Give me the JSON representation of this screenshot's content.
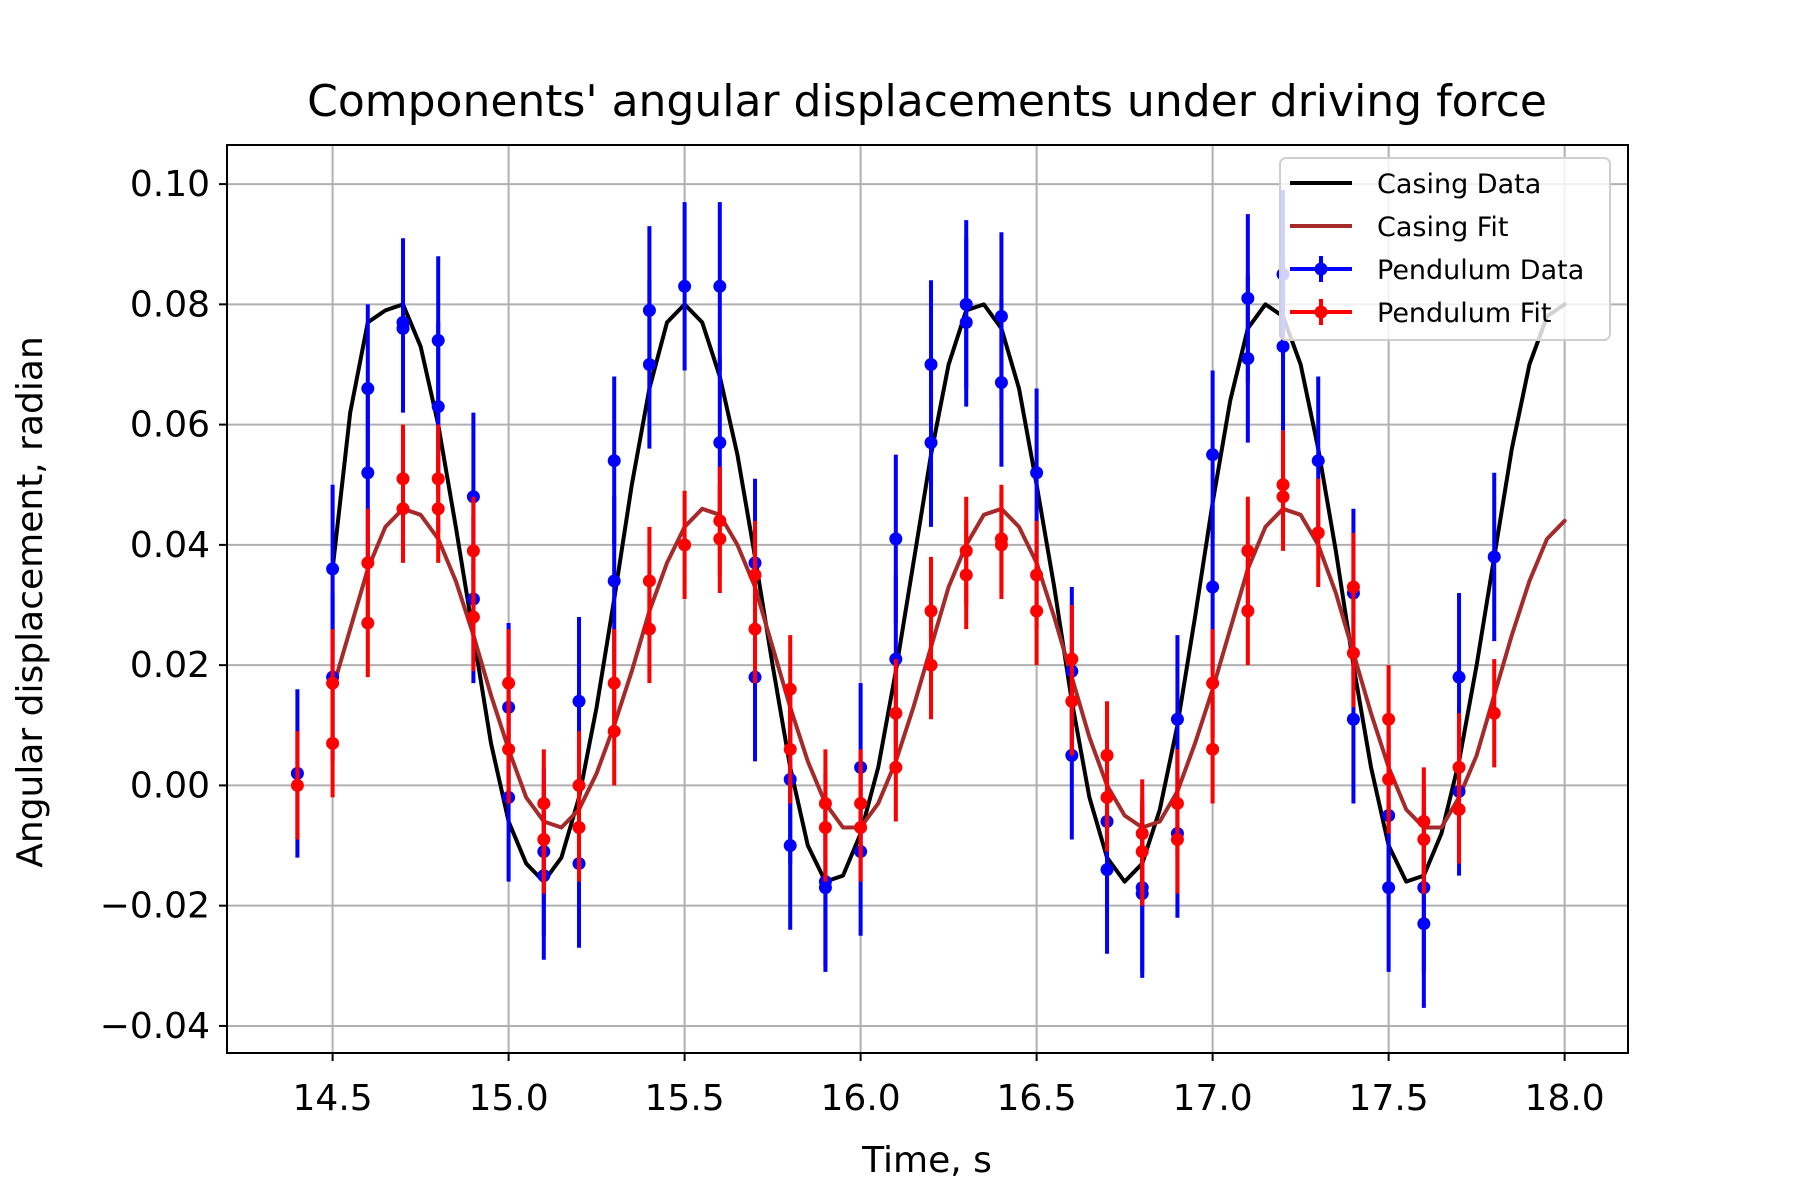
{
  "chart_data": {
    "type": "line",
    "title": "Components' angular displacements under driving force",
    "xlabel": "Time, s",
    "ylabel": "Angular displacement, radian",
    "xlim": [
      14.2,
      18.18
    ],
    "ylim": [
      -0.0445,
      0.1065
    ],
    "xticks": [
      14.5,
      15.0,
      15.5,
      16.0,
      16.5,
      17.0,
      17.5,
      18.0
    ],
    "xtick_labels": [
      "14.5",
      "15.0",
      "15.5",
      "16.0",
      "16.5",
      "17.0",
      "17.5",
      "18.0"
    ],
    "yticks": [
      -0.04,
      -0.02,
      0.0,
      0.02,
      0.04,
      0.06,
      0.08,
      0.1
    ],
    "ytick_labels": [
      "−0.04",
      "−0.02",
      "0.00",
      "0.02",
      "0.04",
      "0.06",
      "0.08",
      "0.10"
    ],
    "grid": true,
    "legend_position": "top-right",
    "series": [
      {
        "name": "Casing Data",
        "kind": "line",
        "color": "#000000",
        "x": [
          14.5,
          14.55,
          14.6,
          14.65,
          14.7,
          14.75,
          14.8,
          14.85,
          14.9,
          14.95,
          15.0,
          15.05,
          15.1,
          15.15,
          15.2,
          15.25,
          15.3,
          15.35,
          15.4,
          15.45,
          15.5,
          15.55,
          15.6,
          15.65,
          15.7,
          15.75,
          15.8,
          15.85,
          15.9,
          15.95,
          16.0,
          16.05,
          16.1,
          16.15,
          16.2,
          16.25,
          16.3,
          16.35,
          16.4,
          16.45,
          16.5,
          16.55,
          16.6,
          16.65,
          16.7,
          16.75,
          16.8,
          16.85,
          16.9,
          16.95,
          17.0,
          17.05,
          17.1,
          17.15,
          17.2,
          17.25,
          17.3,
          17.35,
          17.4,
          17.45,
          17.5,
          17.55,
          17.6,
          17.65,
          17.7,
          17.75,
          17.8,
          17.85,
          17.9,
          17.95,
          18.0
        ],
        "y": [
          0.036,
          0.062,
          0.077,
          0.079,
          0.08,
          0.073,
          0.06,
          0.043,
          0.025,
          0.007,
          -0.006,
          -0.013,
          -0.016,
          -0.012,
          -0.002,
          0.013,
          0.031,
          0.05,
          0.066,
          0.077,
          0.08,
          0.077,
          0.068,
          0.055,
          0.038,
          0.02,
          0.003,
          -0.01,
          -0.016,
          -0.015,
          -0.008,
          0.003,
          0.019,
          0.037,
          0.055,
          0.07,
          0.079,
          0.08,
          0.076,
          0.066,
          0.05,
          0.033,
          0.014,
          -0.002,
          -0.012,
          -0.016,
          -0.013,
          -0.004,
          0.01,
          0.028,
          0.047,
          0.064,
          0.076,
          0.08,
          0.078,
          0.07,
          0.056,
          0.039,
          0.02,
          0.003,
          -0.01,
          -0.016,
          -0.015,
          -0.008,
          0.004,
          0.02,
          0.038,
          0.056,
          0.07,
          0.078,
          0.08
        ]
      },
      {
        "name": "Casing Fit",
        "kind": "line",
        "color": "#a52a2a",
        "x": [
          14.5,
          14.55,
          14.6,
          14.65,
          14.7,
          14.75,
          14.8,
          14.85,
          14.9,
          14.95,
          15.0,
          15.05,
          15.1,
          15.15,
          15.2,
          15.25,
          15.3,
          15.35,
          15.4,
          15.45,
          15.5,
          15.55,
          15.6,
          15.65,
          15.7,
          15.75,
          15.8,
          15.85,
          15.9,
          15.95,
          16.0,
          16.05,
          16.1,
          16.15,
          16.2,
          16.25,
          16.3,
          16.35,
          16.4,
          16.45,
          16.5,
          16.55,
          16.6,
          16.65,
          16.7,
          16.75,
          16.8,
          16.85,
          16.9,
          16.95,
          17.0,
          17.05,
          17.1,
          17.15,
          17.2,
          17.25,
          17.3,
          17.35,
          17.4,
          17.45,
          17.5,
          17.55,
          17.6,
          17.65,
          17.7,
          17.75,
          17.8,
          17.85,
          17.9,
          17.95,
          18.0
        ],
        "y": [
          0.016,
          0.026,
          0.036,
          0.043,
          0.046,
          0.045,
          0.041,
          0.034,
          0.025,
          0.015,
          0.006,
          -0.002,
          -0.006,
          -0.007,
          -0.004,
          0.002,
          0.01,
          0.019,
          0.029,
          0.037,
          0.043,
          0.046,
          0.045,
          0.04,
          0.033,
          0.023,
          0.013,
          0.004,
          -0.003,
          -0.007,
          -0.007,
          -0.003,
          0.004,
          0.013,
          0.023,
          0.033,
          0.04,
          0.045,
          0.046,
          0.043,
          0.037,
          0.028,
          0.018,
          0.008,
          0.0,
          -0.005,
          -0.007,
          -0.006,
          -0.001,
          0.007,
          0.016,
          0.026,
          0.036,
          0.043,
          0.046,
          0.045,
          0.04,
          0.032,
          0.022,
          0.012,
          0.003,
          -0.004,
          -0.007,
          -0.007,
          -0.002,
          0.005,
          0.015,
          0.025,
          0.034,
          0.041,
          0.044
        ]
      },
      {
        "name": "Pendulum Data",
        "kind": "errorbar",
        "color": "#0000ff",
        "x": [
          14.4,
          14.5,
          14.5,
          14.6,
          14.6,
          14.7,
          14.7,
          14.8,
          14.8,
          14.9,
          14.9,
          15.0,
          15.0,
          15.1,
          15.1,
          15.2,
          15.2,
          15.3,
          15.3,
          15.4,
          15.4,
          15.5,
          15.6,
          15.6,
          15.7,
          15.7,
          15.8,
          15.8,
          15.9,
          15.9,
          16.0,
          16.0,
          16.1,
          16.1,
          16.2,
          16.2,
          16.3,
          16.3,
          16.4,
          16.4,
          16.5,
          16.6,
          16.6,
          16.7,
          16.7,
          16.8,
          16.8,
          16.9,
          16.9,
          17.0,
          17.0,
          17.1,
          17.1,
          17.2,
          17.2,
          17.3,
          17.4,
          17.4,
          17.5,
          17.5,
          17.6,
          17.6,
          17.7,
          17.7,
          17.8
        ],
        "y": [
          0.002,
          0.036,
          0.018,
          0.066,
          0.052,
          0.077,
          0.076,
          0.074,
          0.063,
          0.048,
          0.031,
          0.013,
          -0.002,
          -0.015,
          -0.011,
          0.014,
          -0.013,
          0.054,
          0.034,
          0.079,
          0.07,
          0.083,
          0.083,
          0.057,
          0.037,
          0.018,
          0.001,
          -0.01,
          -0.016,
          -0.017,
          0.003,
          -0.011,
          0.041,
          0.021,
          0.07,
          0.057,
          0.08,
          0.077,
          0.078,
          0.067,
          0.052,
          0.019,
          0.005,
          -0.006,
          -0.014,
          -0.017,
          -0.018,
          0.011,
          -0.008,
          0.055,
          0.033,
          0.081,
          0.071,
          0.085,
          0.073,
          0.054,
          0.032,
          0.011,
          -0.005,
          -0.017,
          -0.017,
          -0.023,
          0.018,
          -0.001,
          0.038
        ],
        "yerr": 0.014
      },
      {
        "name": "Pendulum Fit",
        "kind": "errorbar",
        "color": "#ff0000",
        "x": [
          14.4,
          14.5,
          14.5,
          14.6,
          14.6,
          14.7,
          14.7,
          14.8,
          14.8,
          14.9,
          14.9,
          15.0,
          15.0,
          15.1,
          15.1,
          15.2,
          15.2,
          15.3,
          15.3,
          15.4,
          15.4,
          15.5,
          15.6,
          15.6,
          15.7,
          15.7,
          15.8,
          15.8,
          15.9,
          15.9,
          16.0,
          16.0,
          16.1,
          16.1,
          16.2,
          16.2,
          16.3,
          16.3,
          16.4,
          16.4,
          16.5,
          16.5,
          16.6,
          16.6,
          16.7,
          16.7,
          16.8,
          16.8,
          16.9,
          16.9,
          17.0,
          17.0,
          17.1,
          17.1,
          17.2,
          17.2,
          17.3,
          17.4,
          17.4,
          17.5,
          17.5,
          17.6,
          17.6,
          17.7,
          17.7,
          17.8
        ],
        "y": [
          0.0,
          0.017,
          0.007,
          0.037,
          0.027,
          0.051,
          0.046,
          0.051,
          0.046,
          0.039,
          0.028,
          0.017,
          0.006,
          -0.003,
          -0.009,
          0.0,
          -0.007,
          0.017,
          0.009,
          0.034,
          0.026,
          0.04,
          0.044,
          0.041,
          0.035,
          0.026,
          0.016,
          0.006,
          -0.003,
          -0.007,
          -0.003,
          -0.007,
          0.012,
          0.003,
          0.029,
          0.02,
          0.039,
          0.035,
          0.041,
          0.04,
          0.035,
          0.029,
          0.021,
          0.014,
          0.005,
          -0.002,
          -0.008,
          -0.011,
          -0.003,
          -0.009,
          0.017,
          0.006,
          0.039,
          0.029,
          0.05,
          0.048,
          0.042,
          0.033,
          0.022,
          0.011,
          0.001,
          -0.006,
          -0.009,
          0.003,
          -0.004,
          0.012
        ],
        "yerr": 0.009
      }
    ]
  }
}
